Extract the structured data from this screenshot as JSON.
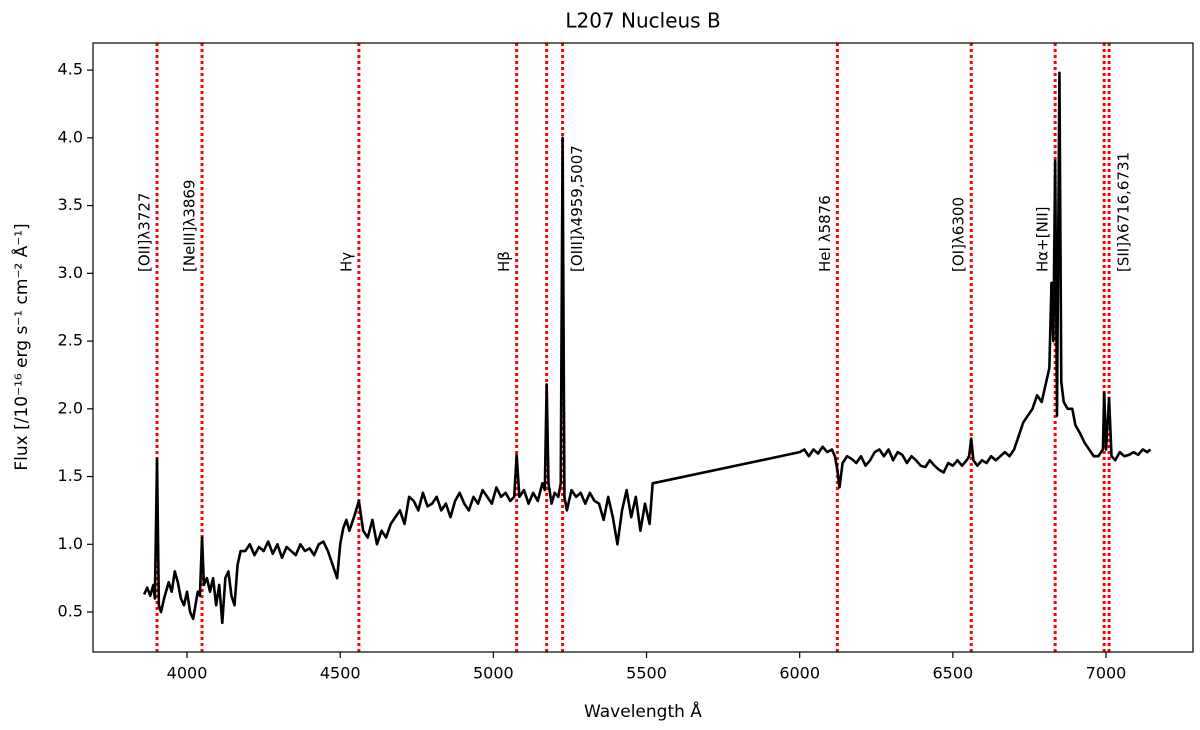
{
  "chart_data": {
    "type": "line",
    "title": "L207 Nucleus B",
    "x_label": "Wavelength Å",
    "y_label": "Flux  [/10⁻¹⁶ erg s⁻¹ cm⁻² Å⁻¹]",
    "color": "#000000",
    "grid": false,
    "xlim": [
      3693,
      7284
    ],
    "ylim": [
      0.205,
      4.7
    ],
    "xticks": [
      4000,
      4500,
      5000,
      5500,
      6000,
      6500,
      7000
    ],
    "yticks": [
      0.5,
      {
        "value": 1,
        "label": "1.0"
      },
      1.5,
      {
        "value": 2,
        "label": "2.0"
      },
      2.5,
      {
        "value": 3,
        "label": "3.0"
      },
      3.5,
      {
        "value": 4,
        "label": "4.0"
      },
      4.5
    ],
    "lines_color": "#ff0000",
    "lines": [
      {
        "wavelength": 3902,
        "label": "[OII]λ3727"
      },
      {
        "wavelength": 4049,
        "label": "[NeIII]λ3869"
      },
      {
        "wavelength": 4561,
        "label": "Hγ"
      },
      {
        "wavelength": 5076,
        "label": "Hβ"
      },
      {
        "wavelength": 5174
      },
      {
        "wavelength": 5226,
        "label": "[OIII]λ4959,5007"
      },
      {
        "wavelength": 6123,
        "label": "HeI λ5876"
      },
      {
        "wavelength": 6560,
        "label": "[OI]λ6300"
      },
      {
        "wavelength": 6834,
        "label": "Hα+[NII]"
      },
      {
        "wavelength": 6994
      },
      {
        "wavelength": 7010,
        "label": "[SII]λ6716,6731"
      }
    ],
    "x": [
      3860,
      3870,
      3880,
      3890,
      3895,
      3902,
      3908,
      3915,
      3925,
      3940,
      3950,
      3960,
      3970,
      3980,
      3990,
      4000,
      4010,
      4020,
      4035,
      4042,
      4049,
      4055,
      4065,
      4075,
      4085,
      4095,
      4105,
      4115,
      4125,
      4135,
      4145,
      4155,
      4165,
      4175,
      4190,
      4205,
      4220,
      4235,
      4250,
      4265,
      4280,
      4295,
      4310,
      4325,
      4340,
      4355,
      4370,
      4385,
      4400,
      4415,
      4430,
      4445,
      4460,
      4475,
      4490,
      4500,
      4510,
      4520,
      4530,
      4545,
      4561,
      4575,
      4590,
      4605,
      4620,
      4635,
      4650,
      4665,
      4680,
      4695,
      4710,
      4725,
      4740,
      4755,
      4770,
      4785,
      4800,
      4815,
      4830,
      4845,
      4860,
      4875,
      4890,
      4905,
      4920,
      4935,
      4950,
      4965,
      4980,
      4995,
      5010,
      5025,
      5040,
      5055,
      5068,
      5076,
      5085,
      5100,
      5115,
      5130,
      5145,
      5160,
      5168,
      5174,
      5180,
      5190,
      5200,
      5212,
      5220,
      5226,
      5232,
      5240,
      5255,
      5270,
      5285,
      5300,
      5315,
      5330,
      5345,
      5360,
      5375,
      5390,
      5405,
      5420,
      5435,
      5450,
      5465,
      5480,
      5495,
      5510,
      5520,
      6000,
      6015,
      6030,
      6045,
      6060,
      6075,
      6090,
      6105,
      6115,
      6123,
      6130,
      6140,
      6155,
      6170,
      6185,
      6200,
      6215,
      6230,
      6245,
      6260,
      6275,
      6290,
      6305,
      6320,
      6335,
      6350,
      6365,
      6380,
      6395,
      6410,
      6425,
      6440,
      6455,
      6470,
      6485,
      6500,
      6515,
      6530,
      6545,
      6553,
      6560,
      6567,
      6580,
      6595,
      6610,
      6625,
      6640,
      6655,
      6670,
      6685,
      6700,
      6715,
      6730,
      6745,
      6760,
      6775,
      6790,
      6805,
      6815,
      6822,
      6828,
      6834,
      6840,
      6848,
      6854,
      6862,
      6875,
      6890,
      6900,
      6915,
      6930,
      6945,
      6960,
      6975,
      6990,
      6994,
      7000,
      7010,
      7018,
      7030,
      7045,
      7060,
      7075,
      7090,
      7105,
      7120,
      7135,
      7145
    ],
    "values": [
      0.63,
      0.68,
      0.62,
      0.7,
      0.6,
      1.63,
      0.55,
      0.5,
      0.6,
      0.72,
      0.65,
      0.8,
      0.72,
      0.6,
      0.55,
      0.65,
      0.5,
      0.45,
      0.65,
      0.62,
      1.05,
      0.7,
      0.75,
      0.65,
      0.75,
      0.55,
      0.7,
      0.42,
      0.75,
      0.8,
      0.62,
      0.55,
      0.85,
      0.95,
      0.95,
      1.0,
      0.92,
      0.98,
      0.95,
      1.02,
      0.93,
      1.0,
      0.9,
      0.98,
      0.95,
      0.92,
      1.0,
      0.95,
      0.97,
      0.92,
      1.0,
      1.02,
      0.95,
      0.85,
      0.75,
      1.0,
      1.12,
      1.18,
      1.1,
      1.2,
      1.32,
      1.1,
      1.05,
      1.18,
      1.0,
      1.1,
      1.05,
      1.15,
      1.2,
      1.25,
      1.15,
      1.35,
      1.32,
      1.25,
      1.38,
      1.28,
      1.3,
      1.35,
      1.25,
      1.3,
      1.2,
      1.32,
      1.38,
      1.3,
      1.25,
      1.35,
      1.3,
      1.4,
      1.35,
      1.3,
      1.42,
      1.35,
      1.38,
      1.32,
      1.35,
      1.66,
      1.35,
      1.4,
      1.3,
      1.38,
      1.32,
      1.45,
      1.4,
      2.18,
      1.45,
      1.3,
      1.38,
      1.35,
      1.45,
      4.0,
      1.35,
      1.25,
      1.4,
      1.35,
      1.38,
      1.3,
      1.38,
      1.32,
      1.3,
      1.18,
      1.35,
      1.2,
      1.0,
      1.25,
      1.4,
      1.2,
      1.35,
      1.1,
      1.3,
      1.15,
      1.45,
      1.68,
      1.7,
      1.65,
      1.7,
      1.67,
      1.72,
      1.68,
      1.7,
      1.65,
      1.55,
      1.42,
      1.6,
      1.65,
      1.63,
      1.6,
      1.65,
      1.58,
      1.62,
      1.68,
      1.7,
      1.65,
      1.7,
      1.62,
      1.68,
      1.66,
      1.6,
      1.65,
      1.62,
      1.58,
      1.57,
      1.62,
      1.58,
      1.55,
      1.53,
      1.6,
      1.58,
      1.62,
      1.58,
      1.62,
      1.65,
      1.78,
      1.62,
      1.58,
      1.62,
      1.6,
      1.65,
      1.62,
      1.65,
      1.68,
      1.65,
      1.7,
      1.8,
      1.9,
      1.95,
      2.0,
      2.1,
      2.05,
      2.2,
      2.3,
      2.93,
      2.5,
      3.83,
      1.95,
      4.48,
      2.2,
      2.05,
      2.0,
      2.0,
      1.88,
      1.82,
      1.75,
      1.7,
      1.65,
      1.65,
      1.7,
      2.12,
      1.7,
      2.08,
      1.65,
      1.62,
      1.68,
      1.65,
      1.66,
      1.68,
      1.66,
      1.7,
      1.68,
      1.7
    ]
  }
}
